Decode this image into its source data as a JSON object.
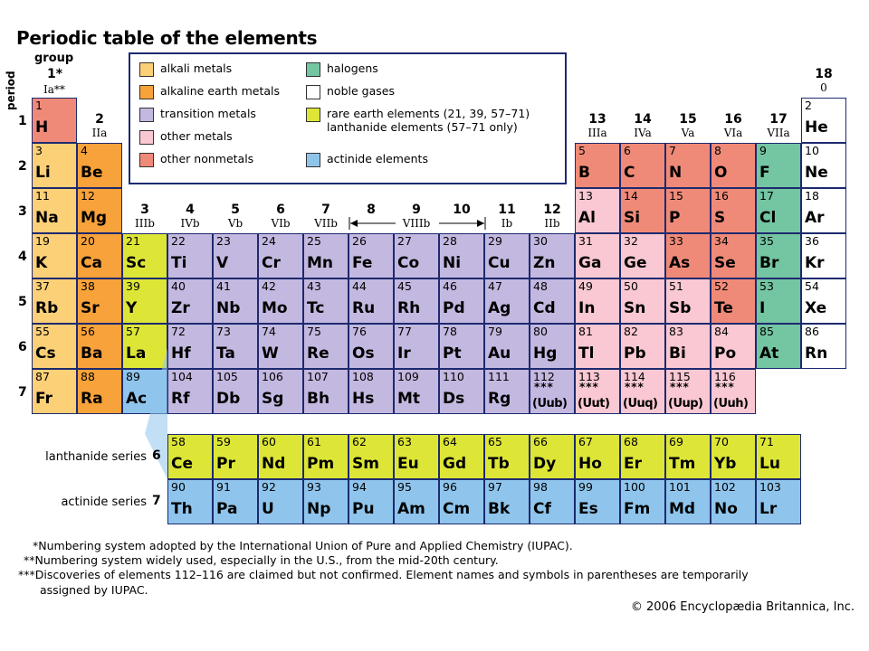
{
  "title": "Periodic table of the elements",
  "axis_labels": {
    "period": "period",
    "group": "group",
    "group1_num": "1*",
    "group1_label": "Ia**"
  },
  "legend": [
    {
      "key": "alkali",
      "label": "alkali metals",
      "color": "#fcd077"
    },
    {
      "key": "alkaline",
      "label": "alkaline earth metals",
      "color": "#f7a23a"
    },
    {
      "key": "transition",
      "label": "transition metals",
      "color": "#c3b8e0"
    },
    {
      "key": "othermetal",
      "label": "other metals",
      "color": "#f9c8d2"
    },
    {
      "key": "nonmetal",
      "label": "other nonmetals",
      "color": "#f08a78"
    },
    {
      "key": "halogen",
      "label": "halogens",
      "color": "#74c5a2"
    },
    {
      "key": "noble",
      "label": "noble gases",
      "color": "#ffffff"
    },
    {
      "key": "rare",
      "label": "rare earth elements (21, 39, 57–71)",
      "label2": "lanthanide elements (57–71 only)",
      "color": "#dde636"
    },
    {
      "key": "actinide",
      "label": "actinide elements",
      "color": "#8fc5ec"
    }
  ],
  "groups": [
    {
      "col": 2,
      "num": "2",
      "label": "IIa"
    },
    {
      "col": 3,
      "num": "3",
      "label": "IIIb"
    },
    {
      "col": 4,
      "num": "4",
      "label": "IVb"
    },
    {
      "col": 5,
      "num": "5",
      "label": "Vb"
    },
    {
      "col": 6,
      "num": "6",
      "label": "VIb"
    },
    {
      "col": 7,
      "num": "7",
      "label": "VIIb"
    },
    {
      "col": 8,
      "num": "8",
      "label": ""
    },
    {
      "col": 9,
      "num": "9",
      "label": "VIIIb"
    },
    {
      "col": 10,
      "num": "10",
      "label": ""
    },
    {
      "col": 11,
      "num": "11",
      "label": "Ib"
    },
    {
      "col": 12,
      "num": "12",
      "label": "IIb"
    },
    {
      "col": 13,
      "num": "13",
      "label": "IIIa"
    },
    {
      "col": 14,
      "num": "14",
      "label": "IVa"
    },
    {
      "col": 15,
      "num": "15",
      "label": "Va"
    },
    {
      "col": 16,
      "num": "16",
      "label": "VIa"
    },
    {
      "col": 17,
      "num": "17",
      "label": "VIIa"
    },
    {
      "col": 18,
      "num": "18",
      "label": "0"
    }
  ],
  "periods": [
    "1",
    "2",
    "3",
    "4",
    "5",
    "6",
    "7"
  ],
  "elements": [
    [
      1,
      "H",
      1,
      1,
      "nonmetal"
    ],
    [
      2,
      "He",
      1,
      18,
      "noble"
    ],
    [
      3,
      "Li",
      2,
      1,
      "alkali"
    ],
    [
      4,
      "Be",
      2,
      2,
      "alkaline"
    ],
    [
      5,
      "B",
      2,
      13,
      "nonmetal"
    ],
    [
      6,
      "C",
      2,
      14,
      "nonmetal"
    ],
    [
      7,
      "N",
      2,
      15,
      "nonmetal"
    ],
    [
      8,
      "O",
      2,
      16,
      "nonmetal"
    ],
    [
      9,
      "F",
      2,
      17,
      "halogen"
    ],
    [
      10,
      "Ne",
      2,
      18,
      "noble"
    ],
    [
      11,
      "Na",
      3,
      1,
      "alkali"
    ],
    [
      12,
      "Mg",
      3,
      2,
      "alkaline"
    ],
    [
      13,
      "Al",
      3,
      13,
      "othermetal"
    ],
    [
      14,
      "Si",
      3,
      14,
      "nonmetal"
    ],
    [
      15,
      "P",
      3,
      15,
      "nonmetal"
    ],
    [
      16,
      "S",
      3,
      16,
      "nonmetal"
    ],
    [
      17,
      "Cl",
      3,
      17,
      "halogen"
    ],
    [
      18,
      "Ar",
      3,
      18,
      "noble"
    ],
    [
      19,
      "K",
      4,
      1,
      "alkali"
    ],
    [
      20,
      "Ca",
      4,
      2,
      "alkaline"
    ],
    [
      21,
      "Sc",
      4,
      3,
      "rare"
    ],
    [
      22,
      "Ti",
      4,
      4,
      "transition"
    ],
    [
      23,
      "V",
      4,
      5,
      "transition"
    ],
    [
      24,
      "Cr",
      4,
      6,
      "transition"
    ],
    [
      25,
      "Mn",
      4,
      7,
      "transition"
    ],
    [
      26,
      "Fe",
      4,
      8,
      "transition"
    ],
    [
      27,
      "Co",
      4,
      9,
      "transition"
    ],
    [
      28,
      "Ni",
      4,
      10,
      "transition"
    ],
    [
      29,
      "Cu",
      4,
      11,
      "transition"
    ],
    [
      30,
      "Zn",
      4,
      12,
      "transition"
    ],
    [
      31,
      "Ga",
      4,
      13,
      "othermetal"
    ],
    [
      32,
      "Ge",
      4,
      14,
      "othermetal"
    ],
    [
      33,
      "As",
      4,
      15,
      "nonmetal"
    ],
    [
      34,
      "Se",
      4,
      16,
      "nonmetal"
    ],
    [
      35,
      "Br",
      4,
      17,
      "halogen"
    ],
    [
      36,
      "Kr",
      4,
      18,
      "noble"
    ],
    [
      37,
      "Rb",
      5,
      1,
      "alkali"
    ],
    [
      38,
      "Sr",
      5,
      2,
      "alkaline"
    ],
    [
      39,
      "Y",
      5,
      3,
      "rare"
    ],
    [
      40,
      "Zr",
      5,
      4,
      "transition"
    ],
    [
      41,
      "Nb",
      5,
      5,
      "transition"
    ],
    [
      42,
      "Mo",
      5,
      6,
      "transition"
    ],
    [
      43,
      "Tc",
      5,
      7,
      "transition"
    ],
    [
      44,
      "Ru",
      5,
      8,
      "transition"
    ],
    [
      45,
      "Rh",
      5,
      9,
      "transition"
    ],
    [
      46,
      "Pd",
      5,
      10,
      "transition"
    ],
    [
      47,
      "Ag",
      5,
      11,
      "transition"
    ],
    [
      48,
      "Cd",
      5,
      12,
      "transition"
    ],
    [
      49,
      "In",
      5,
      13,
      "othermetal"
    ],
    [
      50,
      "Sn",
      5,
      14,
      "othermetal"
    ],
    [
      51,
      "Sb",
      5,
      15,
      "othermetal"
    ],
    [
      52,
      "Te",
      5,
      16,
      "nonmetal"
    ],
    [
      53,
      "I",
      5,
      17,
      "halogen"
    ],
    [
      54,
      "Xe",
      5,
      18,
      "noble"
    ],
    [
      55,
      "Cs",
      6,
      1,
      "alkali"
    ],
    [
      56,
      "Ba",
      6,
      2,
      "alkaline"
    ],
    [
      57,
      "La",
      6,
      3,
      "rare"
    ],
    [
      72,
      "Hf",
      6,
      4,
      "transition"
    ],
    [
      73,
      "Ta",
      6,
      5,
      "transition"
    ],
    [
      74,
      "W",
      6,
      6,
      "transition"
    ],
    [
      75,
      "Re",
      6,
      7,
      "transition"
    ],
    [
      76,
      "Os",
      6,
      8,
      "transition"
    ],
    [
      77,
      "Ir",
      6,
      9,
      "transition"
    ],
    [
      78,
      "Pt",
      6,
      10,
      "transition"
    ],
    [
      79,
      "Au",
      6,
      11,
      "transition"
    ],
    [
      80,
      "Hg",
      6,
      12,
      "transition"
    ],
    [
      81,
      "Tl",
      6,
      13,
      "othermetal"
    ],
    [
      82,
      "Pb",
      6,
      14,
      "othermetal"
    ],
    [
      83,
      "Bi",
      6,
      15,
      "othermetal"
    ],
    [
      84,
      "Po",
      6,
      16,
      "othermetal"
    ],
    [
      85,
      "At",
      6,
      17,
      "halogen"
    ],
    [
      86,
      "Rn",
      6,
      18,
      "noble"
    ],
    [
      87,
      "Fr",
      7,
      1,
      "alkali"
    ],
    [
      88,
      "Ra",
      7,
      2,
      "alkaline"
    ],
    [
      89,
      "Ac",
      7,
      3,
      "actinide"
    ],
    [
      104,
      "Rf",
      7,
      4,
      "transition"
    ],
    [
      105,
      "Db",
      7,
      5,
      "transition"
    ],
    [
      106,
      "Sg",
      7,
      6,
      "transition"
    ],
    [
      107,
      "Bh",
      7,
      7,
      "transition"
    ],
    [
      108,
      "Hs",
      7,
      8,
      "transition"
    ],
    [
      109,
      "Mt",
      7,
      9,
      "transition"
    ],
    [
      110,
      "Ds",
      7,
      10,
      "transition"
    ],
    [
      111,
      "Rg",
      7,
      11,
      "transition"
    ],
    [
      112,
      "(Uub)",
      7,
      12,
      "transition",
      "***"
    ],
    [
      113,
      "(Uut)",
      7,
      13,
      "othermetal",
      "***"
    ],
    [
      114,
      "(Uuq)",
      7,
      14,
      "othermetal",
      "***"
    ],
    [
      115,
      "(Uup)",
      7,
      15,
      "othermetal",
      "***"
    ],
    [
      116,
      "(Uuh)",
      7,
      16,
      "othermetal",
      "***"
    ]
  ],
  "series": [
    {
      "label": "lanthanide series",
      "period": "6",
      "color": "#dde636",
      "elements": [
        [
          58,
          "Ce"
        ],
        [
          59,
          "Pr"
        ],
        [
          60,
          "Nd"
        ],
        [
          61,
          "Pm"
        ],
        [
          62,
          "Sm"
        ],
        [
          63,
          "Eu"
        ],
        [
          64,
          "Gd"
        ],
        [
          65,
          "Tb"
        ],
        [
          66,
          "Dy"
        ],
        [
          67,
          "Ho"
        ],
        [
          68,
          "Er"
        ],
        [
          69,
          "Tm"
        ],
        [
          70,
          "Yb"
        ],
        [
          71,
          "Lu"
        ]
      ]
    },
    {
      "label": "actinide series",
      "period": "7",
      "color": "#8fc5ec",
      "elements": [
        [
          90,
          "Th"
        ],
        [
          91,
          "Pa"
        ],
        [
          92,
          "U"
        ],
        [
          93,
          "Np"
        ],
        [
          94,
          "Pu"
        ],
        [
          95,
          "Am"
        ],
        [
          96,
          "Cm"
        ],
        [
          97,
          "Bk"
        ],
        [
          98,
          "Cf"
        ],
        [
          99,
          "Es"
        ],
        [
          100,
          "Fm"
        ],
        [
          101,
          "Md"
        ],
        [
          102,
          "No"
        ],
        [
          103,
          "Lr"
        ]
      ]
    }
  ],
  "footnotes": [
    "*Numbering system adopted by the International Union of Pure and Applied Chemistry (IUPAC).",
    "**Numbering system widely used, especially in the U.S., from the mid-20th century.",
    "***Discoveries of elements 112–116 are claimed but not confirmed. Element names and symbols in parentheses are temporarily",
    "assigned by IUPAC."
  ],
  "copyright": "© 2006 Encyclopædia Britannica, Inc."
}
